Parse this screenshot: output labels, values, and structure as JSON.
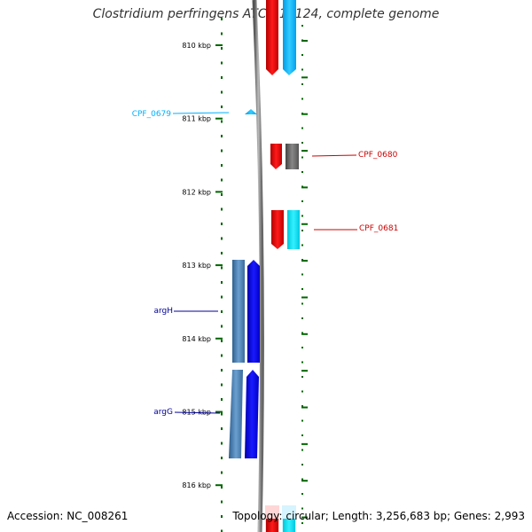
{
  "title": "Clostridium perfringens ATCC 13124, complete genome",
  "footer": {
    "accession": "Accession: NC_008261",
    "summary": "Topology: circular; Length: 3,256,683 bp; Genes: 2,993"
  },
  "scale": {
    "unit": "kbp",
    "ticks": [
      {
        "kbp": 810,
        "label": "810 kbp"
      },
      {
        "kbp": 811,
        "label": "811 kbp"
      },
      {
        "kbp": 812,
        "label": "812 kbp"
      },
      {
        "kbp": 813,
        "label": "813 kbp"
      },
      {
        "kbp": 814,
        "label": "814 kbp"
      },
      {
        "kbp": 815,
        "label": "815 kbp"
      },
      {
        "kbp": 816,
        "label": "816 kbp"
      }
    ]
  },
  "colors": {
    "forward_red": "#ff0000",
    "forward_cyan": "#00ccff",
    "gray_gene": "#666666",
    "reverse_steel": "#4682b4",
    "reverse_blue": "#0000ff",
    "tick_green": "#006600",
    "label_cyan": "#00b0ff",
    "label_red": "#cc0000",
    "label_blue": "#000099",
    "backbone": "#888888"
  },
  "gene_labels": [
    {
      "name": "CPF_0679",
      "color": "#00b0ff"
    },
    {
      "name": "CPF_0680",
      "color": "#cc0000"
    },
    {
      "name": "CPF_0681",
      "color": "#cc0000"
    },
    {
      "name": "argH",
      "color": "#000099"
    },
    {
      "name": "argG",
      "color": "#000099"
    }
  ]
}
